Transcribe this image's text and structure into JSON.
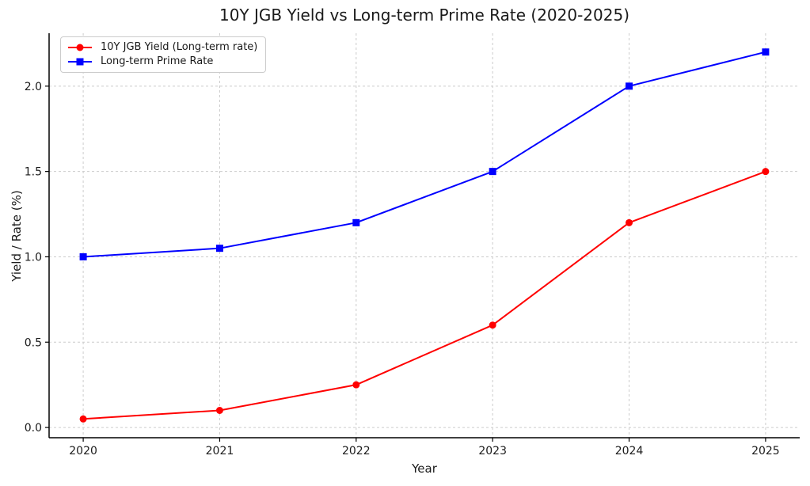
{
  "chart_data": {
    "type": "line",
    "title": "10Y JGB Yield vs Long-term Prime Rate (2020-2025)",
    "xlabel": "Year",
    "ylabel": "Yield / Rate (%)",
    "x": [
      2020,
      2021,
      2022,
      2023,
      2024,
      2025
    ],
    "series": [
      {
        "name": "10Y JGB Yield (Long-term rate)",
        "values": [
          0.05,
          0.1,
          0.25,
          0.6,
          1.2,
          1.5
        ],
        "color": "#ff0000",
        "marker": "circle"
      },
      {
        "name": "Long-term Prime Rate",
        "values": [
          1.0,
          1.05,
          1.2,
          1.5,
          2.0,
          2.2
        ],
        "color": "#0000ff",
        "marker": "square"
      }
    ],
    "xticks": [
      2020,
      2021,
      2022,
      2023,
      2024,
      2025
    ],
    "xtick_labels": [
      "2020",
      "2021",
      "2022",
      "2023",
      "2024",
      "2025"
    ],
    "yticks": [
      0.0,
      0.5,
      1.0,
      1.5,
      2.0
    ],
    "ytick_labels": [
      "0.0",
      "0.5",
      "1.0",
      "1.5",
      "2.0"
    ],
    "xlim": [
      2019.75,
      2025.25
    ],
    "ylim": [
      -0.06,
      2.31
    ],
    "grid": true,
    "grid_style": "dashed",
    "grid_color": "#cccccc",
    "axis_color": "#000000",
    "text_color": "#1a1a1a",
    "background": "#ffffff",
    "legend_position": "upper left"
  }
}
